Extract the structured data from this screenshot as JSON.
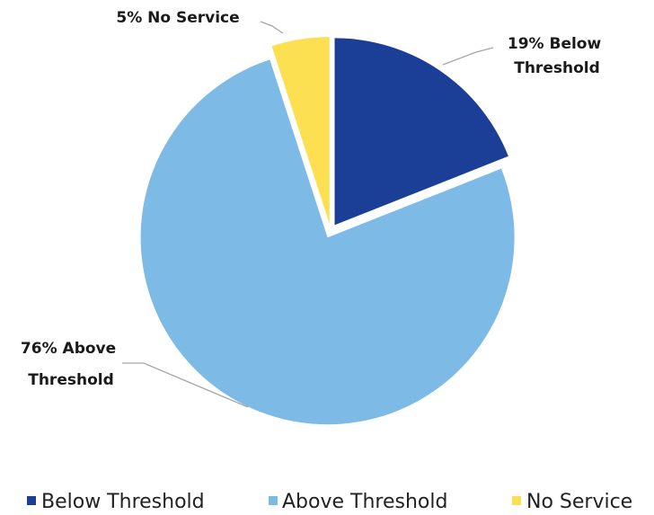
{
  "chart_data": {
    "type": "pie",
    "slices": [
      {
        "category": "Below Threshold",
        "value": 19,
        "color": "#1b3f96",
        "label_lines": [
          "19% Below",
          "Threshold"
        ]
      },
      {
        "category": "Above Threshold",
        "value": 76,
        "color": "#7dbbe6",
        "label_lines": [
          "76% Above",
          "Threshold"
        ]
      },
      {
        "category": "No Service",
        "value": 5,
        "color": "#fde052",
        "label_lines": [
          "5% No Service"
        ]
      }
    ],
    "legend": {
      "position": "bottom",
      "entries": [
        "Below Threshold",
        "Above Threshold",
        "No Service"
      ]
    }
  }
}
